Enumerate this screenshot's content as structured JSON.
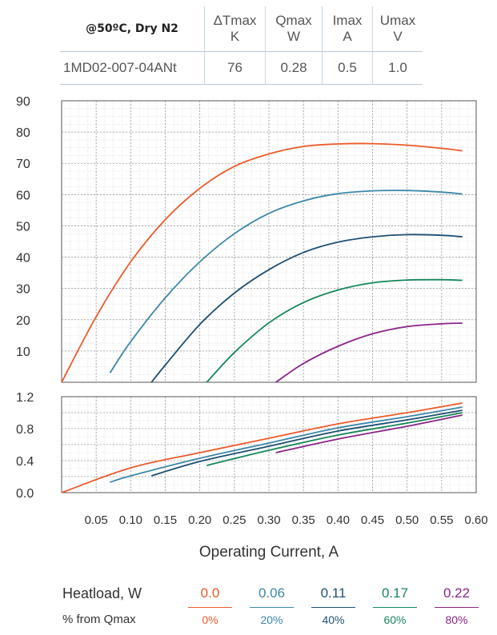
{
  "spec_table": {
    "condition": "@50ºC, Dry N2",
    "columns": [
      {
        "name": "ΔTmax",
        "unit": "K"
      },
      {
        "name": "Qmax",
        "unit": "W"
      },
      {
        "name": "Imax",
        "unit": "A"
      },
      {
        "name": "Umax",
        "unit": "V"
      }
    ],
    "row": {
      "model": "1MD02-007-04ANt",
      "values": [
        "76",
        "0.28",
        "0.5",
        "1.0"
      ]
    }
  },
  "legend": {
    "title": "Heatload, W",
    "subtitle": "% from Qmax",
    "items": [
      {
        "value": "0.0",
        "percent": "0%",
        "color": "#ec5a2a"
      },
      {
        "value": "0.06",
        "percent": "20%",
        "color": "#3c88a8"
      },
      {
        "value": "0.11",
        "percent": "40%",
        "color": "#1e4f73"
      },
      {
        "value": "0.17",
        "percent": "60%",
        "color": "#17875a"
      },
      {
        "value": "0.22",
        "percent": "80%",
        "color": "#8a2489"
      }
    ]
  },
  "chart_data": [
    {
      "type": "line",
      "xlabel": "Operating Current, A",
      "ylabel": "",
      "xlim": [
        0,
        0.6
      ],
      "ylim": [
        0,
        90
      ],
      "yticks": [
        "10",
        "20",
        "30",
        "40",
        "50",
        "60",
        "70",
        "80",
        "90"
      ],
      "grid": true,
      "series": [
        {
          "name": "0.0",
          "color": "#ec5a2a",
          "x": [
            0.0,
            0.05,
            0.1,
            0.15,
            0.2,
            0.25,
            0.3,
            0.35,
            0.4,
            0.45,
            0.5,
            0.55,
            0.58
          ],
          "y": [
            0,
            21,
            38.5,
            52,
            62,
            69,
            73,
            75.4,
            76.2,
            76.3,
            75.8,
            74.8,
            74
          ]
        },
        {
          "name": "0.06",
          "color": "#3c88a8",
          "x": [
            0.07,
            0.1,
            0.15,
            0.2,
            0.25,
            0.3,
            0.35,
            0.4,
            0.45,
            0.5,
            0.55,
            0.58
          ],
          "y": [
            3,
            13,
            27,
            38.5,
            47.5,
            54,
            58,
            60.3,
            61.2,
            61.3,
            60.8,
            60.2
          ]
        },
        {
          "name": "0.11",
          "color": "#1e4f73",
          "x": [
            0.13,
            0.15,
            0.2,
            0.25,
            0.3,
            0.35,
            0.4,
            0.45,
            0.5,
            0.55,
            0.58
          ],
          "y": [
            0,
            5.5,
            18.5,
            28.5,
            36,
            41.5,
            44.8,
            46.5,
            47.2,
            47,
            46.5
          ]
        },
        {
          "name": "0.17",
          "color": "#17875a",
          "x": [
            0.21,
            0.25,
            0.3,
            0.35,
            0.4,
            0.45,
            0.5,
            0.55,
            0.58
          ],
          "y": [
            0,
            9.5,
            19,
            25.5,
            29.5,
            31.8,
            32.7,
            32.8,
            32.6
          ]
        },
        {
          "name": "0.22",
          "color": "#8a2489",
          "x": [
            0.31,
            0.35,
            0.4,
            0.45,
            0.5,
            0.55,
            0.58
          ],
          "y": [
            0,
            6,
            11.5,
            15.5,
            17.8,
            18.7,
            18.9
          ]
        }
      ]
    },
    {
      "type": "line",
      "xlabel": "Operating Current, A",
      "ylabel": "",
      "xlim": [
        0,
        0.6
      ],
      "ylim": [
        0,
        1.2
      ],
      "yticks": [
        "0.0",
        "0.4",
        "0.8",
        "1.2"
      ],
      "xticks": [
        "0.05",
        "0.10",
        "0.15",
        "0.20",
        "0.25",
        "0.30",
        "0.35",
        "0.40",
        "0.45",
        "0.50",
        "0.55",
        "0.60"
      ],
      "grid": true,
      "series": [
        {
          "name": "0.0",
          "color": "#ec5a2a",
          "x": [
            0.0,
            0.1,
            0.2,
            0.3,
            0.4,
            0.5,
            0.58
          ],
          "y": [
            0,
            0.31,
            0.5,
            0.68,
            0.86,
            1.0,
            1.12
          ]
        },
        {
          "name": "0.06",
          "color": "#3c88a8",
          "x": [
            0.07,
            0.1,
            0.2,
            0.3,
            0.4,
            0.5,
            0.58
          ],
          "y": [
            0.13,
            0.21,
            0.43,
            0.62,
            0.81,
            0.95,
            1.07
          ]
        },
        {
          "name": "0.11",
          "color": "#1e4f73",
          "x": [
            0.13,
            0.2,
            0.3,
            0.4,
            0.5,
            0.58
          ],
          "y": [
            0.21,
            0.39,
            0.58,
            0.77,
            0.91,
            1.03
          ]
        },
        {
          "name": "0.17",
          "color": "#17875a",
          "x": [
            0.21,
            0.3,
            0.4,
            0.5,
            0.58
          ],
          "y": [
            0.34,
            0.53,
            0.72,
            0.87,
            1.0
          ]
        },
        {
          "name": "0.22",
          "color": "#8a2489",
          "x": [
            0.31,
            0.4,
            0.5,
            0.58
          ],
          "y": [
            0.5,
            0.67,
            0.83,
            0.97
          ]
        }
      ]
    }
  ]
}
